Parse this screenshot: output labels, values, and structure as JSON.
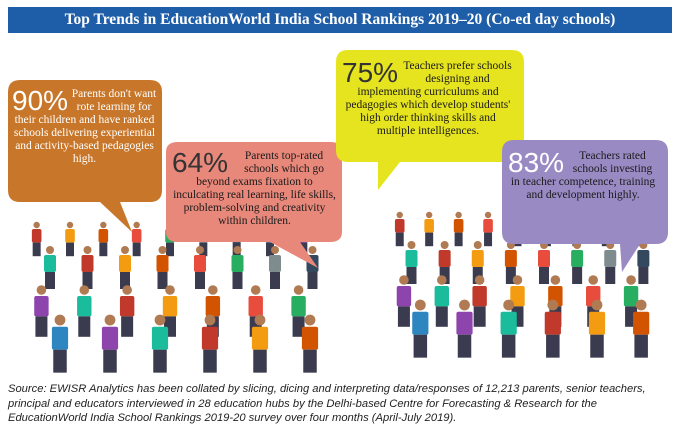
{
  "header": {
    "title": "Top Trends in EducationWorld India School Rankings 2019–20 (Co-ed day schools)"
  },
  "bubbles": [
    {
      "percent": "90%",
      "text": "Parents don't want rote learning for their children and have ranked schools delivering experiential and activity-based pedagogies high."
    },
    {
      "percent": "64%",
      "text": "Parents top-rated schools which go beyond exams fixation to inculcating real learning, life skills, problem-solving and creativity within children."
    },
    {
      "percent": "75%",
      "text": "Teachers prefer schools designing and implementing curriculums and pedagogies which develop students' high order thinking skills and multiple intelligences."
    },
    {
      "percent": "83%",
      "text": "Teachers rated schools investing in teacher competence, training and development highly."
    }
  ],
  "footer": {
    "source": "Source: EWISR Analytics has been collated by slicing, dicing and interpreting data/responses of 12,213 parents, senior teachers, principal and educators interviewed in 28 education hubs by the Delhi-based Centre for Forecasting & Research for the EducationWorld India School Rankings 2019-20 survey over four months (April-July 2019)."
  }
}
